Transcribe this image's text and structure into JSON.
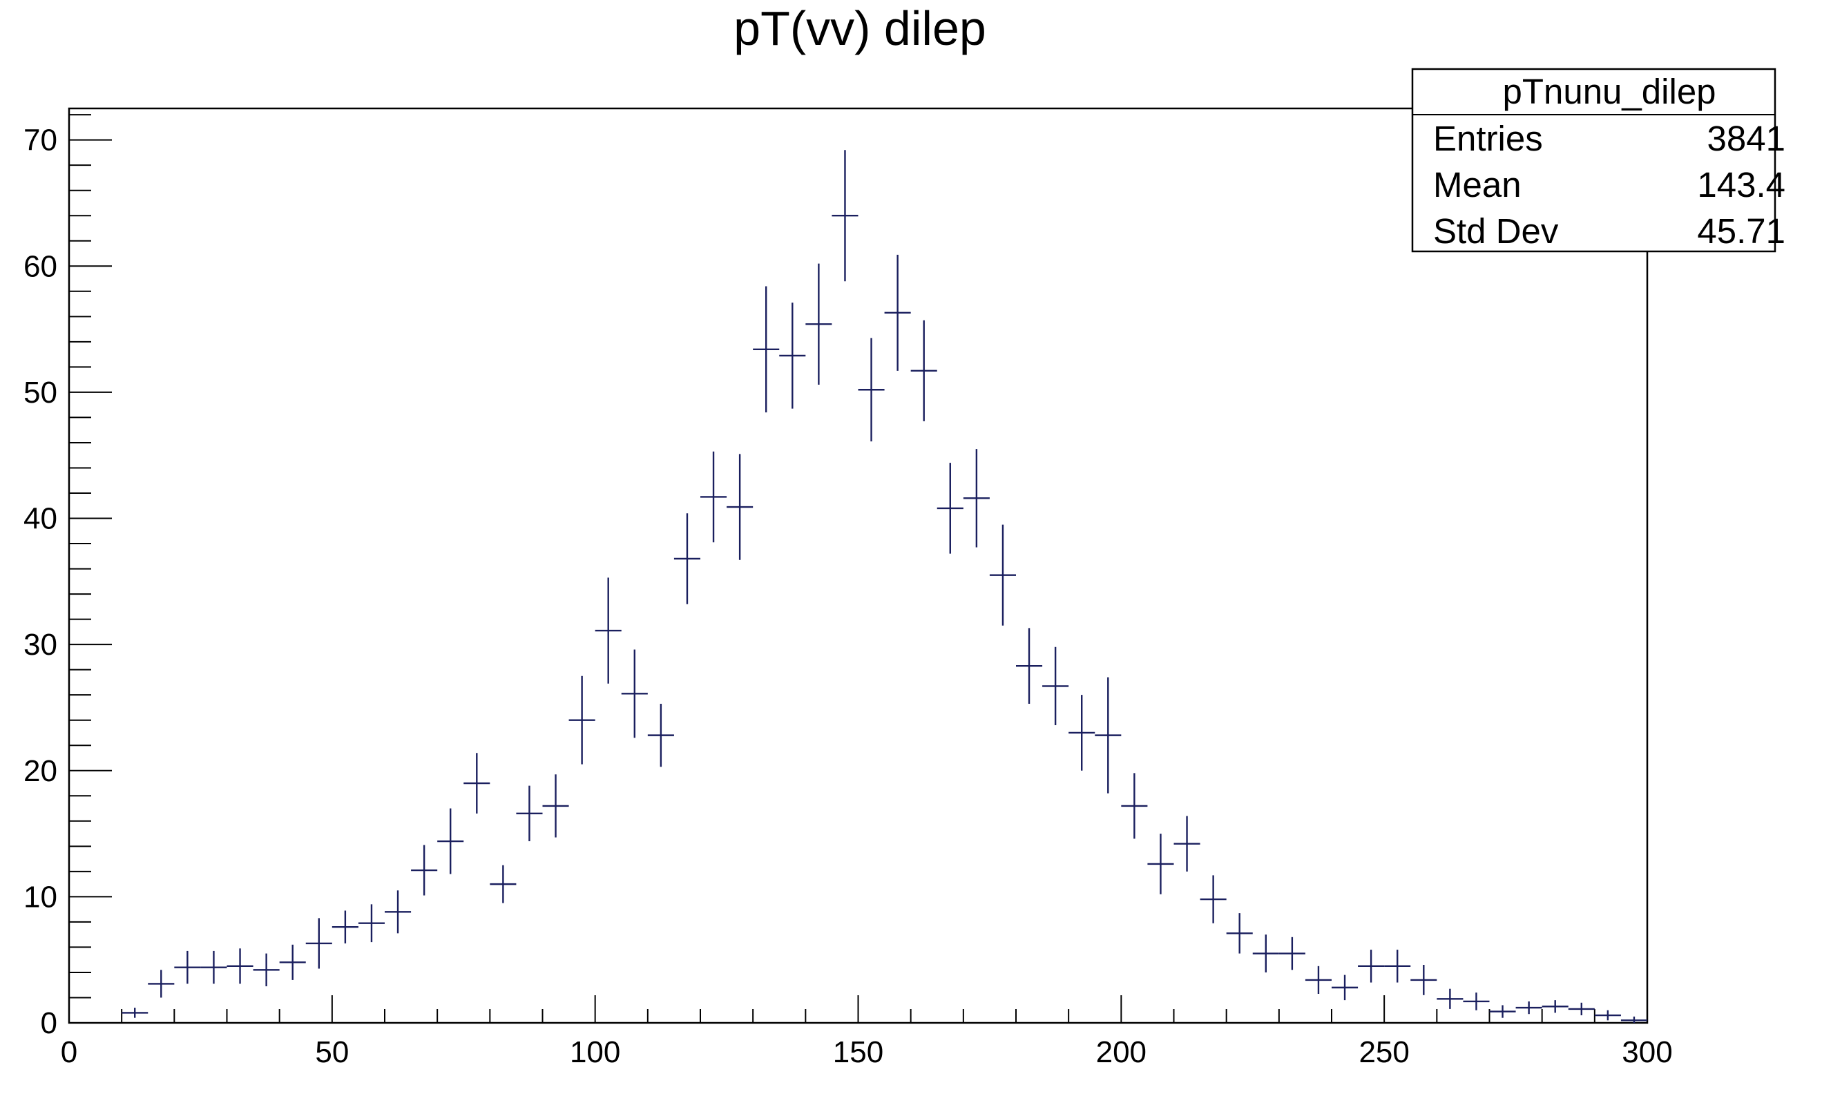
{
  "chart_data": {
    "type": "scatter",
    "style": "histogram-with-error-bars",
    "title": "pT(vv) dilep",
    "xlabel": "",
    "ylabel": "",
    "xlim": [
      0,
      300
    ],
    "ylim": [
      0,
      72.5
    ],
    "xticks": [
      0,
      50,
      100,
      150,
      200,
      250,
      300
    ],
    "xtick_labels": [
      "0",
      "50",
      "100",
      "150",
      "200",
      "250",
      "300"
    ],
    "yticks": [
      0,
      10,
      20,
      30,
      40,
      50,
      60,
      70
    ],
    "ytick_labels": [
      "0",
      "10",
      "20",
      "30",
      "40",
      "50",
      "60",
      "70"
    ],
    "bin_width": 5,
    "bin_centers": [
      12.5,
      17.5,
      22.5,
      27.5,
      32.5,
      37.5,
      42.5,
      47.5,
      52.5,
      57.5,
      62.5,
      67.5,
      72.5,
      77.5,
      82.5,
      87.5,
      92.5,
      97.5,
      102.5,
      107.5,
      112.5,
      117.5,
      122.5,
      127.5,
      132.5,
      137.5,
      142.5,
      147.5,
      152.5,
      157.5,
      162.5,
      167.5,
      172.5,
      177.5,
      182.5,
      187.5,
      192.5,
      197.5,
      202.5,
      207.5,
      212.5,
      217.5,
      222.5,
      227.5,
      232.5,
      237.5,
      242.5,
      247.5,
      252.5,
      257.5,
      262.5,
      267.5,
      272.5,
      277.5,
      282.5,
      287.5,
      292.5,
      297.5
    ],
    "values": [
      0.8,
      3.1,
      4.4,
      4.4,
      4.5,
      4.2,
      4.8,
      6.3,
      7.6,
      7.9,
      8.8,
      12.1,
      14.4,
      19.0,
      11.0,
      16.6,
      17.2,
      24.0,
      31.1,
      26.1,
      22.8,
      36.8,
      41.7,
      40.9,
      53.4,
      52.9,
      55.4,
      64.0,
      50.2,
      56.3,
      51.7,
      40.8,
      41.6,
      35.5,
      28.3,
      26.7,
      23.0,
      22.8,
      17.2,
      12.6,
      14.2,
      9.8,
      7.1,
      5.5,
      5.5,
      3.4,
      2.8,
      4.5,
      4.5,
      3.4,
      1.9,
      1.7,
      0.9,
      1.2,
      1.3,
      1.1,
      0.6,
      0.2
    ],
    "errors": [
      0.4,
      1.1,
      1.3,
      1.3,
      1.4,
      1.3,
      1.4,
      2.0,
      1.3,
      1.5,
      1.7,
      2.0,
      2.6,
      2.4,
      1.5,
      2.2,
      2.5,
      3.5,
      4.2,
      3.5,
      2.5,
      3.6,
      3.6,
      4.2,
      5.0,
      4.2,
      4.8,
      5.2,
      4.1,
      4.6,
      4.0,
      3.6,
      3.9,
      4.0,
      3.0,
      3.1,
      3.0,
      4.6,
      2.6,
      2.4,
      2.2,
      1.9,
      1.6,
      1.5,
      1.3,
      1.1,
      1.0,
      1.3,
      1.3,
      1.2,
      0.8,
      0.7,
      0.5,
      0.5,
      0.5,
      0.5,
      0.4,
      0.3
    ],
    "marker_color": "#1a1f5e"
  },
  "stats_box": {
    "name": "pTnunu_dilep",
    "rows": [
      {
        "label": "Entries",
        "value": "3841"
      },
      {
        "label": "Mean",
        "value": "143.4"
      },
      {
        "label": "Std Dev",
        "value": "45.71"
      }
    ]
  }
}
